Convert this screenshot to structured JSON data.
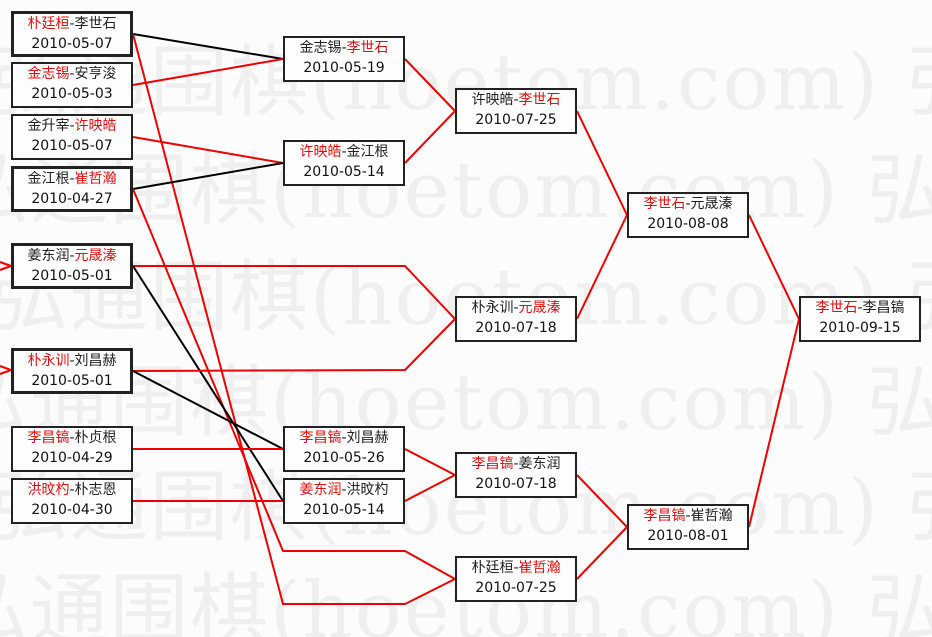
{
  "watermark": "弘通围棋(hoetom.com)",
  "colors": {
    "winner": "#e01010",
    "loser_line": "#000000",
    "winner_line": "#ee0000"
  },
  "rounds": [
    {
      "matches": [
        {
          "p1": "朴廷桓",
          "p2": "李世石",
          "winner": 1,
          "date": "2010-05-07"
        },
        {
          "p1": "金志锡",
          "p2": "安亨浚",
          "winner": 1,
          "date": "2010-05-03"
        },
        {
          "p1": "金升宰",
          "p2": "许映皓",
          "winner": 2,
          "date": "2010-05-07"
        },
        {
          "p1": "金江根",
          "p2": "崔哲瀚",
          "winner": 2,
          "date": "2010-04-27"
        },
        {
          "p1": "姜东润",
          "p2": "元晟溱",
          "winner": 2,
          "date": "2010-05-01"
        },
        {
          "p1": "朴永训",
          "p2": "刘昌赫",
          "winner": 1,
          "date": "2010-05-01"
        },
        {
          "p1": "李昌镐",
          "p2": "朴贞根",
          "winner": 1,
          "date": "2010-04-29"
        },
        {
          "p1": "洪旼杓",
          "p2": "朴志恩",
          "winner": 1,
          "date": "2010-04-30"
        }
      ]
    },
    {
      "matches": [
        {
          "p1": "金志锡",
          "p2": "李世石",
          "winner": 2,
          "date": "2010-05-19"
        },
        {
          "p1": "许映皓",
          "p2": "金江根",
          "winner": 1,
          "date": "2010-05-14"
        },
        {
          "p1": "李昌镐",
          "p2": "刘昌赫",
          "winner": 1,
          "date": "2010-05-26"
        },
        {
          "p1": "姜东润",
          "p2": "洪旼杓",
          "winner": 1,
          "date": "2010-05-14"
        }
      ]
    },
    {
      "matches": [
        {
          "p1": "许映皓",
          "p2": "李世石",
          "winner": 2,
          "date": "2010-07-25"
        },
        {
          "p1": "朴永训",
          "p2": "元晟溱",
          "winner": 2,
          "date": "2010-07-18"
        },
        {
          "p1": "李昌镐",
          "p2": "姜东润",
          "winner": 1,
          "date": "2010-07-18"
        },
        {
          "p1": "朴廷桓",
          "p2": "崔哲瀚",
          "winner": 2,
          "date": "2010-07-25"
        }
      ]
    },
    {
      "matches": [
        {
          "p1": "李世石",
          "p2": "元晟溱",
          "winner": 1,
          "date": "2010-08-08"
        },
        {
          "p1": "李昌镐",
          "p2": "崔哲瀚",
          "winner": 1,
          "date": "2010-08-01"
        }
      ]
    },
    {
      "matches": [
        {
          "p1": "李世石",
          "p2": "李昌镐",
          "winner": 1,
          "date": "2010-09-15"
        }
      ]
    }
  ]
}
